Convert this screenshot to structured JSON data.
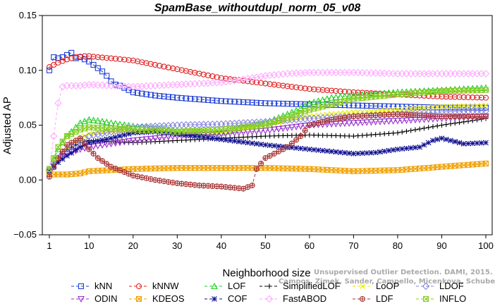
{
  "chart_data": {
    "type": "line",
    "title": "SpamBase_withoutdupl_norm_05_v08",
    "xlabel": "Neighborhood size",
    "ylabel": "Adjusted AP",
    "xlim": [
      1,
      100
    ],
    "ylim": [
      -0.05,
      0.15
    ],
    "xticks": [
      1,
      10,
      20,
      30,
      40,
      50,
      60,
      70,
      80,
      90,
      100
    ],
    "yticks": [
      -0.05,
      0.0,
      0.05,
      0.1,
      0.15
    ],
    "ytick_labels": [
      "−0.05",
      "0.00",
      "0.05",
      "0.10",
      "0.15"
    ],
    "grid": false,
    "legend_position": "bottom",
    "watermark": {
      "line1": "Unsupervised Outlier Detection. DAMI, 2015.",
      "line2": "Campos, Zimek, Sander, Campello, Micenkova, Schubert, Assent, Houle"
    },
    "series": [
      {
        "name": "kNN",
        "color": "#1f3fd6",
        "marker": "square",
        "dash": "4,3",
        "x": [
          1,
          2,
          3,
          4,
          5,
          6,
          7,
          8,
          9,
          10,
          11,
          12,
          13,
          14,
          15,
          16,
          17,
          18,
          20,
          25,
          30,
          40,
          50,
          60,
          70,
          80,
          90,
          100
        ],
        "y": [
          0.1,
          0.112,
          0.111,
          0.112,
          0.114,
          0.116,
          0.111,
          0.112,
          0.11,
          0.108,
          0.105,
          0.102,
          0.099,
          0.095,
          0.09,
          0.087,
          0.086,
          0.084,
          0.08,
          0.077,
          0.075,
          0.072,
          0.07,
          0.069,
          0.068,
          0.067,
          0.066,
          0.066
        ]
      },
      {
        "name": "kNNW",
        "color": "#e02020",
        "marker": "circle",
        "dash": "4,3",
        "x": [
          1,
          3,
          5,
          7,
          9,
          10,
          12,
          15,
          20,
          30,
          40,
          50,
          60,
          70,
          80,
          90,
          100
        ],
        "y": [
          0.103,
          0.107,
          0.11,
          0.112,
          0.113,
          0.113,
          0.112,
          0.111,
          0.109,
          0.101,
          0.093,
          0.088,
          0.083,
          0.08,
          0.078,
          0.076,
          0.075
        ]
      },
      {
        "name": "LOF",
        "color": "#22cc22",
        "marker": "triangle",
        "dash": "4,3",
        "x": [
          1,
          3,
          5,
          8,
          10,
          12,
          15,
          20,
          25,
          30,
          35,
          40,
          45,
          50,
          55,
          58,
          60,
          65,
          70,
          80,
          90,
          100
        ],
        "y": [
          0.01,
          0.028,
          0.04,
          0.052,
          0.055,
          0.054,
          0.052,
          0.049,
          0.047,
          0.045,
          0.044,
          0.043,
          0.048,
          0.052,
          0.06,
          0.065,
          0.07,
          0.075,
          0.077,
          0.08,
          0.082,
          0.084
        ]
      },
      {
        "name": "SimplifiedLOF",
        "color": "#000000",
        "marker": "plus",
        "dash": "4,3",
        "x": [
          1,
          3,
          5,
          8,
          10,
          15,
          20,
          30,
          40,
          50,
          60,
          70,
          80,
          90,
          100
        ],
        "y": [
          0.008,
          0.02,
          0.028,
          0.034,
          0.036,
          0.035,
          0.034,
          0.036,
          0.038,
          0.04,
          0.041,
          0.04,
          0.043,
          0.05,
          0.056
        ]
      },
      {
        "name": "LoOP",
        "color": "#eaea00",
        "marker": "x",
        "dash": "4,3",
        "x": [
          1,
          3,
          5,
          8,
          10,
          15,
          20,
          30,
          40,
          50,
          60,
          70,
          80,
          90,
          100
        ],
        "y": [
          0.007,
          0.02,
          0.03,
          0.038,
          0.042,
          0.044,
          0.045,
          0.044,
          0.043,
          0.05,
          0.058,
          0.062,
          0.064,
          0.067,
          0.068
        ]
      },
      {
        "name": "LDOF",
        "color": "#8888dd",
        "marker": "diamond",
        "dash": "4,3",
        "x": [
          1,
          3,
          5,
          8,
          10,
          15,
          20,
          30,
          40,
          50,
          60,
          70,
          80,
          90,
          100
        ],
        "y": [
          0.009,
          0.02,
          0.028,
          0.036,
          0.04,
          0.044,
          0.048,
          0.05,
          0.051,
          0.053,
          0.056,
          0.058,
          0.06,
          0.062,
          0.063
        ]
      },
      {
        "name": "ODIN",
        "color": "#9933cc",
        "marker": "triangle-down",
        "dash": "4,3",
        "x": [
          1,
          3,
          5,
          8,
          10,
          15,
          20,
          30,
          40,
          50,
          60,
          70,
          80,
          90,
          100
        ],
        "y": [
          0.007,
          0.018,
          0.024,
          0.028,
          0.03,
          0.033,
          0.036,
          0.04,
          0.042,
          0.045,
          0.05,
          0.052,
          0.054,
          0.056,
          0.058
        ]
      },
      {
        "name": "KDEOS",
        "color": "#f0a000",
        "marker": "square-x",
        "dash": "4,3",
        "x": [
          1,
          5,
          8,
          10,
          15,
          20,
          30,
          40,
          50,
          60,
          70,
          80,
          90,
          100
        ],
        "y": [
          0.005,
          0.005,
          0.006,
          0.008,
          0.009,
          0.01,
          0.011,
          0.011,
          0.011,
          0.01,
          0.008,
          0.009,
          0.012,
          0.015
        ]
      },
      {
        "name": "COF",
        "color": "#101090",
        "marker": "asterisk",
        "dash": "4,3",
        "x": [
          1,
          3,
          5,
          8,
          10,
          15,
          20,
          25,
          30,
          40,
          50,
          60,
          70,
          75,
          80,
          85,
          88,
          90,
          95,
          100
        ],
        "y": [
          0.008,
          0.016,
          0.022,
          0.03,
          0.034,
          0.038,
          0.043,
          0.044,
          0.042,
          0.037,
          0.032,
          0.028,
          0.024,
          0.025,
          0.028,
          0.03,
          0.036,
          0.038,
          0.033,
          0.034
        ]
      },
      {
        "name": "FastABOD",
        "color": "#ffaaff",
        "marker": "diamond",
        "dash": "4,3",
        "x": [
          1,
          3,
          4,
          5,
          8,
          10,
          15,
          20,
          30,
          40,
          47,
          50,
          55,
          60,
          70,
          80,
          90,
          100
        ],
        "y": [
          0.01,
          0.07,
          0.085,
          0.086,
          0.086,
          0.087,
          0.086,
          0.085,
          0.087,
          0.089,
          0.093,
          0.095,
          0.097,
          0.098,
          0.098,
          0.097,
          0.097,
          0.097
        ]
      },
      {
        "name": "LDF",
        "color": "#aa3333",
        "marker": "circle-plus",
        "dash": "4,3",
        "x": [
          1,
          3,
          5,
          8,
          10,
          12,
          15,
          20,
          25,
          30,
          35,
          40,
          45,
          47,
          48,
          50,
          52,
          55,
          58,
          60,
          65,
          70,
          80,
          90,
          100
        ],
        "y": [
          0.003,
          0.02,
          0.032,
          0.038,
          0.028,
          0.02,
          0.012,
          0.004,
          0.0,
          -0.003,
          -0.005,
          -0.006,
          -0.008,
          -0.005,
          0.01,
          0.02,
          0.024,
          0.03,
          0.04,
          0.05,
          0.055,
          0.058,
          0.06,
          0.058,
          0.058
        ]
      },
      {
        "name": "INFLO",
        "color": "#88cc22",
        "marker": "square-x",
        "dash": "4,3",
        "x": [
          1,
          3,
          5,
          8,
          10,
          15,
          20,
          30,
          40,
          50,
          60,
          70,
          80,
          90,
          100
        ],
        "y": [
          0.01,
          0.03,
          0.04,
          0.046,
          0.048,
          0.047,
          0.046,
          0.044,
          0.046,
          0.05,
          0.064,
          0.074,
          0.078,
          0.081,
          0.082
        ]
      }
    ]
  }
}
